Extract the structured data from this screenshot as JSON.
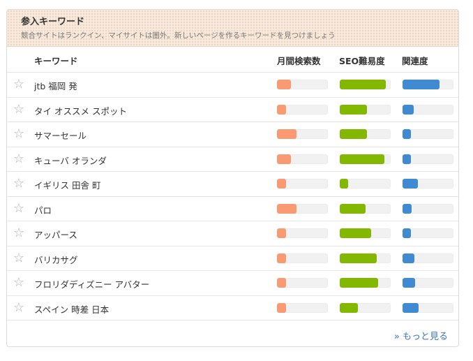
{
  "panel": {
    "title": "参入キーワード",
    "subtitle": "競合サイトはランクイン、マイサイトは圏外。新しいページを作るキーワードを見つけましょう"
  },
  "columns": {
    "keyword": "キーワード",
    "volume": "月間検索数",
    "seo": "SEO難易度",
    "relevance": "関連度"
  },
  "icons": {
    "favorite": "star-outline-icon",
    "more": "double-chevron-right-icon"
  },
  "colors": {
    "volume": "#f99a72",
    "seo": "#82b800",
    "relevance": "#3f8ad0",
    "link": "#3b78c4"
  },
  "rows": [
    {
      "keyword": "jtb 福岡 発",
      "volume": 0.28,
      "seo": 0.9,
      "relevance": 0.72
    },
    {
      "keyword": "タイ オススメ スポット",
      "volume": 0.18,
      "seo": 0.53,
      "relevance": 0.22
    },
    {
      "keyword": "サマーセール",
      "volume": 0.38,
      "seo": 0.53,
      "relevance": 0.16
    },
    {
      "keyword": "キューバ オランダ",
      "volume": 0.28,
      "seo": 0.87,
      "relevance": 0.16
    },
    {
      "keyword": "イギリス 田舎 町",
      "volume": 0.18,
      "seo": 0.17,
      "relevance": 0.3
    },
    {
      "keyword": "パロ",
      "volume": 0.38,
      "seo": 0.5,
      "relevance": 0.18
    },
    {
      "keyword": "アッパース",
      "volume": 0.18,
      "seo": 0.62,
      "relevance": 0.16
    },
    {
      "keyword": "バリカサグ",
      "volume": 0.18,
      "seo": 0.73,
      "relevance": 0.23
    },
    {
      "keyword": "フロリダディズニー アバター",
      "volume": 0.18,
      "seo": 0.76,
      "relevance": 0.24
    },
    {
      "keyword": "スペイン 時差 日本",
      "volume": 0.18,
      "seo": 0.36,
      "relevance": 0.32
    }
  ],
  "footer": {
    "more_label": "» もっと見る"
  }
}
